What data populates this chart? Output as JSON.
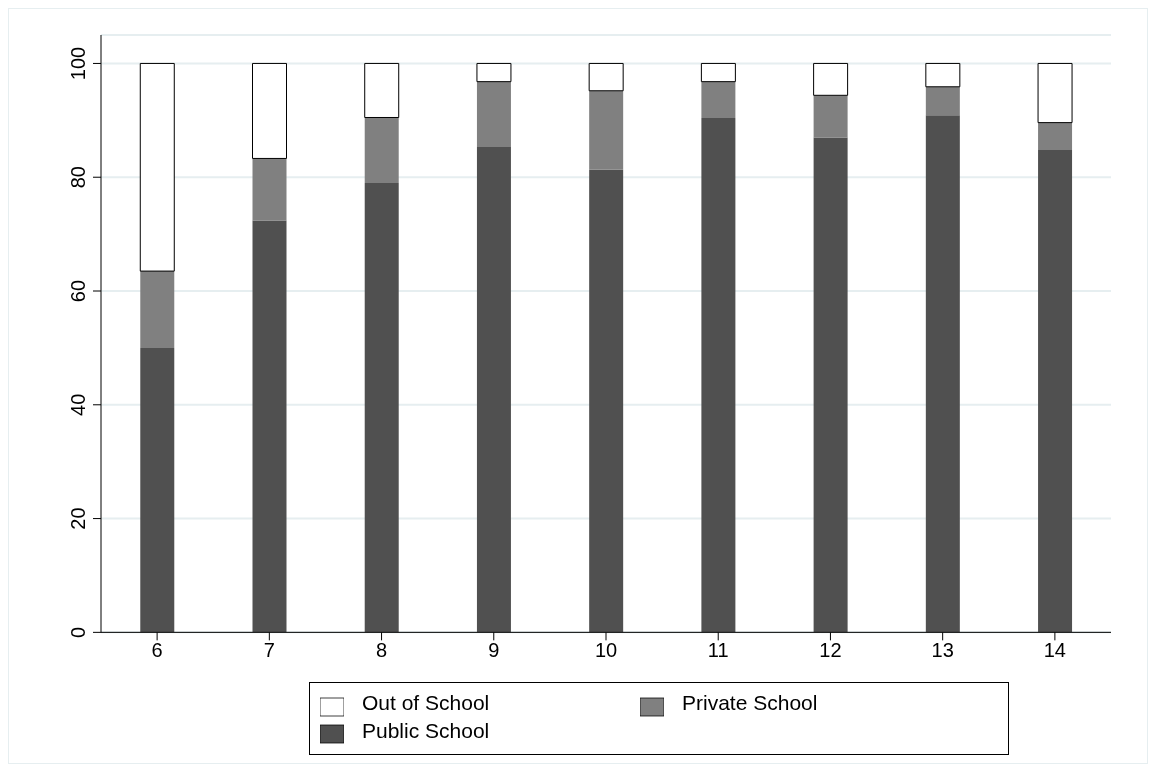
{
  "chart_data": {
    "type": "bar",
    "stacked": true,
    "categories": [
      "6",
      "7",
      "8",
      "9",
      "10",
      "11",
      "12",
      "13",
      "14"
    ],
    "series": [
      {
        "name": "Public School",
        "color": "#505050",
        "values": [
          50,
          72.4,
          79,
          85.3,
          81.3,
          90.4,
          87,
          90.9,
          84.8
        ]
      },
      {
        "name": "Private School",
        "color": "#808080",
        "values": [
          13.5,
          10.9,
          11.5,
          11.5,
          13.9,
          6.4,
          7.4,
          5,
          4.8
        ]
      },
      {
        "name": "Out of School",
        "color": "#ffffff",
        "values": [
          36.5,
          16.7,
          9.5,
          3.2,
          4.8,
          3.2,
          5.6,
          4.1,
          10.4
        ]
      }
    ],
    "ylim": [
      0,
      105
    ],
    "yticks": [
      0,
      20,
      40,
      60,
      80,
      100
    ],
    "grid": "y",
    "legend": "bottom"
  }
}
